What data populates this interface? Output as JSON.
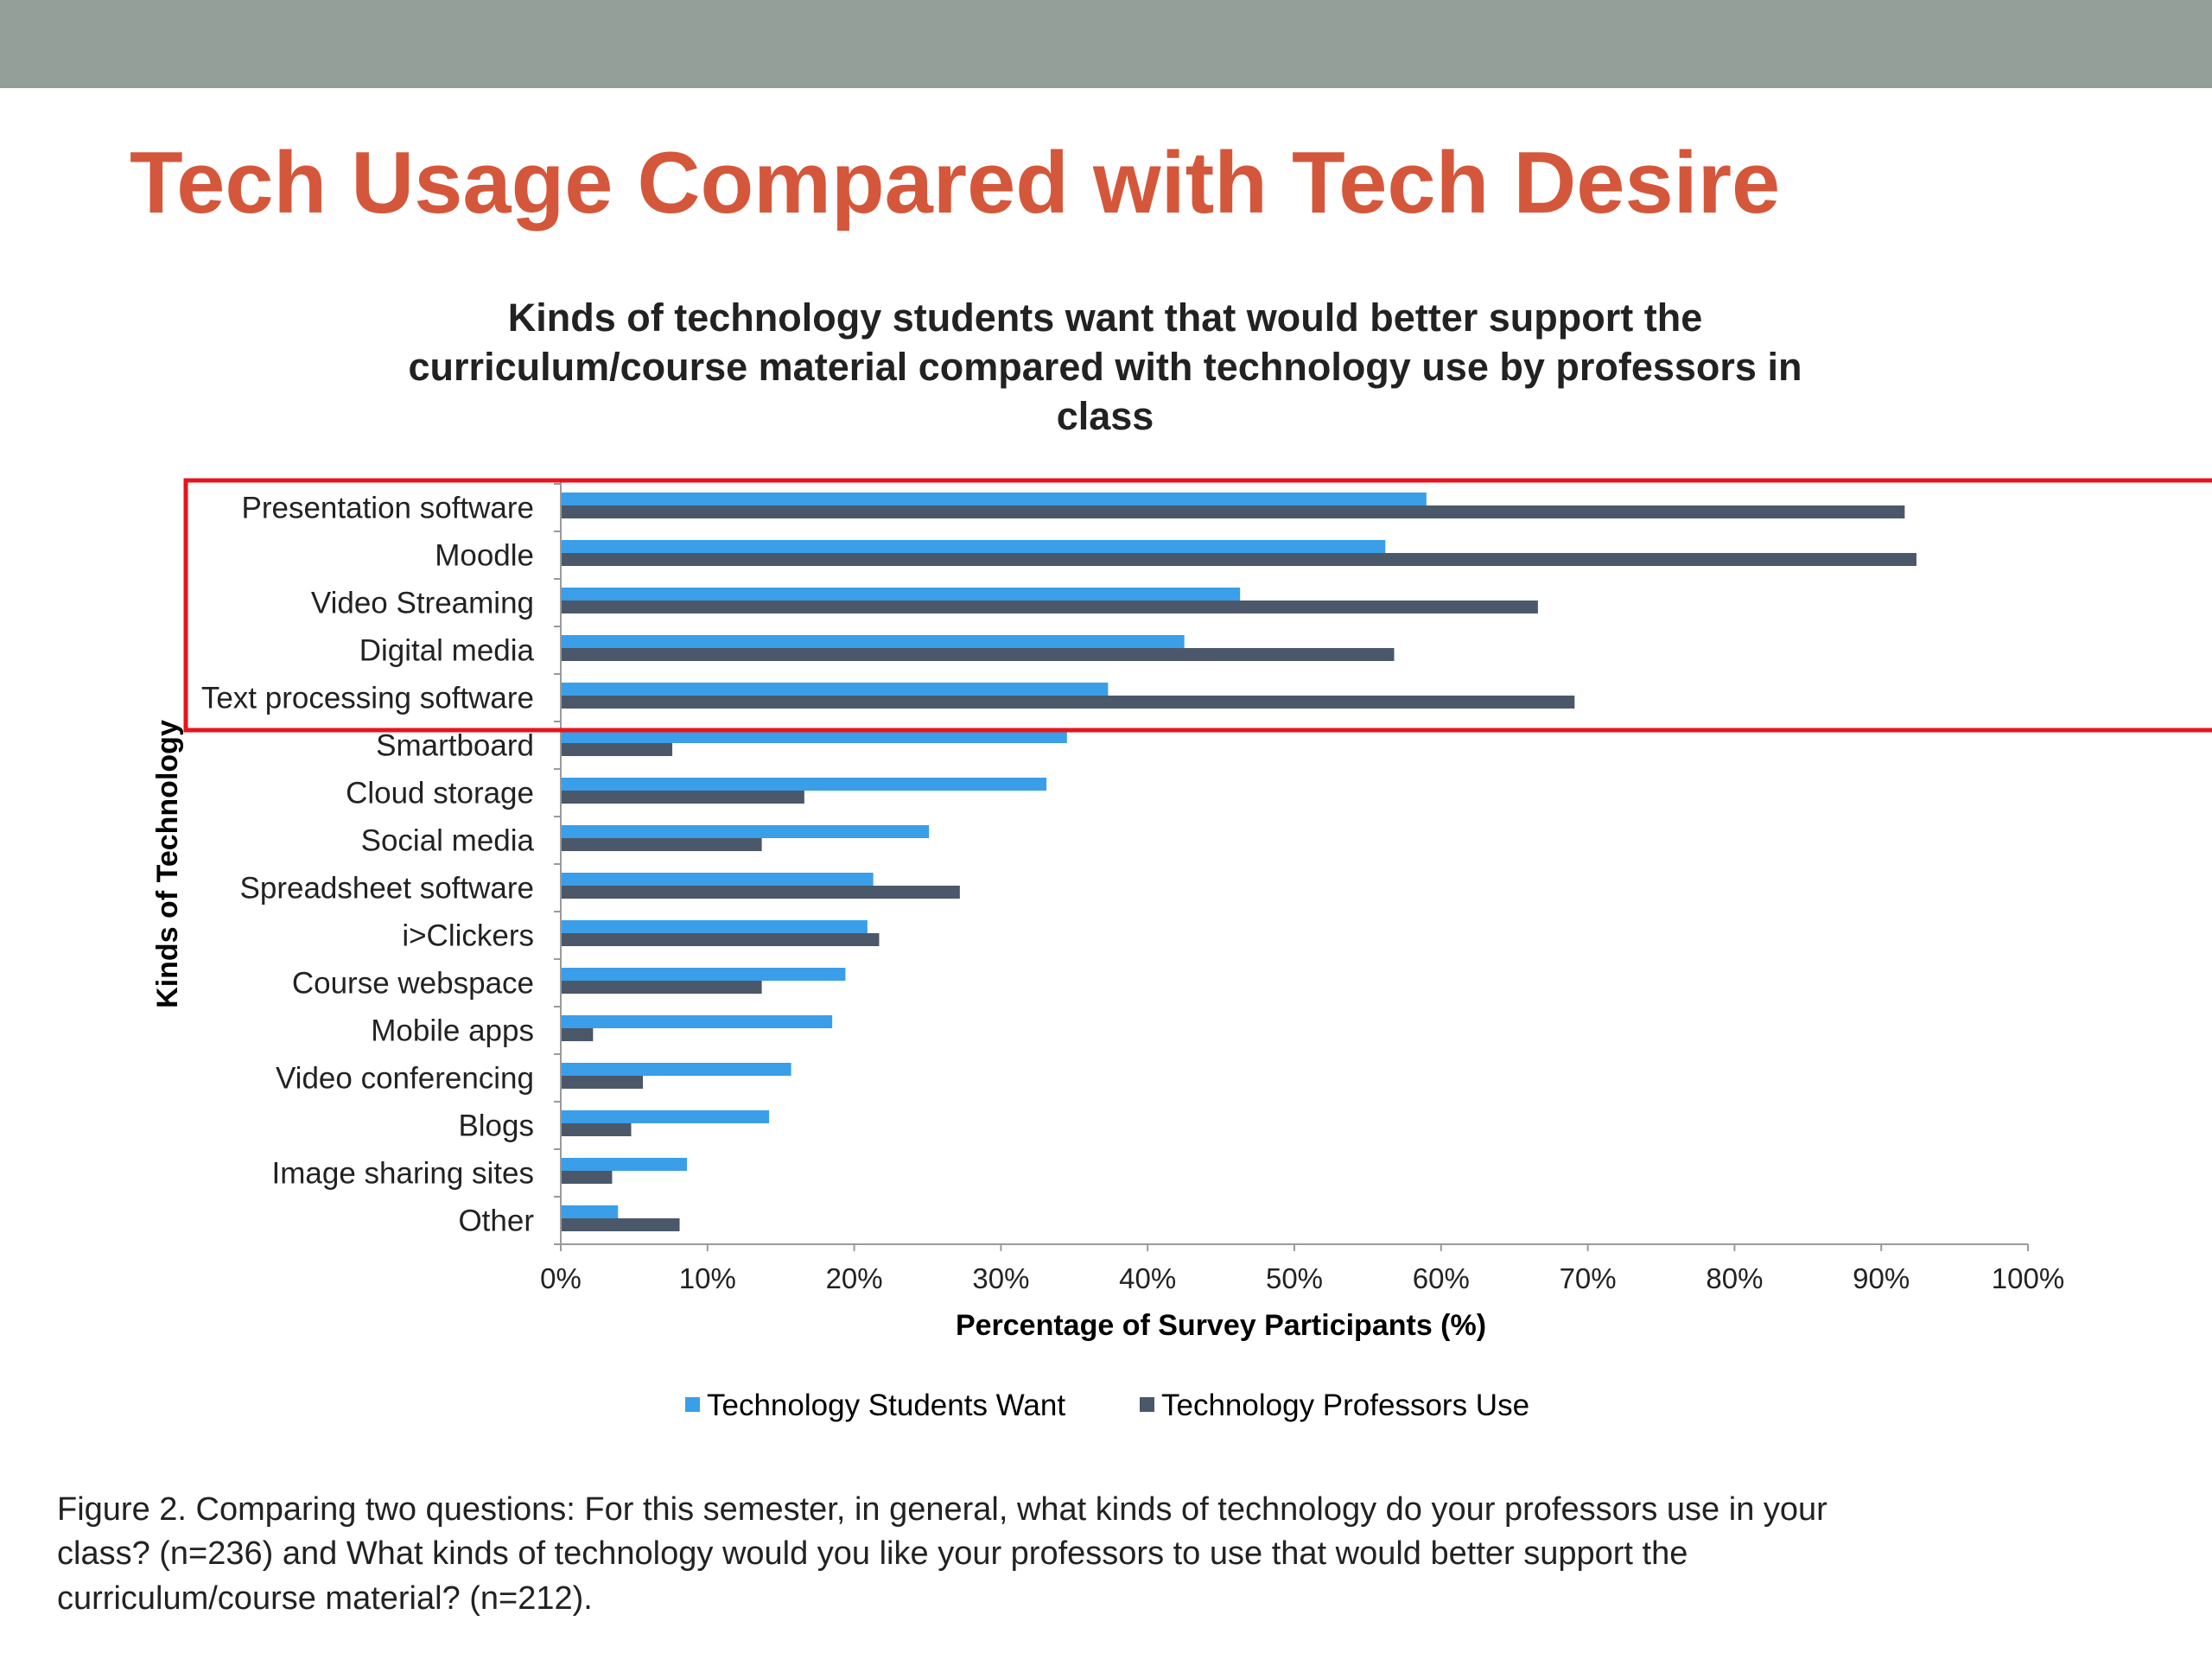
{
  "slide": {
    "title": "Tech Usage Compared with Tech Desire",
    "title_color": "#d4573b",
    "header_bar_color": "#939f98",
    "highlight_box_color": "#e8141b"
  },
  "caption": {
    "lines": [
      "Figure 2. Comparing two questions: For this semester, in general, what kinds of technology do your professors use in your",
      "class? (n=236) and What kinds of technology would you like your professors to use that would better support the",
      "curriculum/course material? (n=212)."
    ]
  },
  "chart_data": {
    "type": "bar",
    "orientation": "horizontal",
    "title_lines": [
      "Kinds of technology students want that would better support the",
      "curriculum/course material compared with technology use by professors in",
      "class"
    ],
    "xlabel": "Percentage of Survey Participants (%)",
    "ylabel": "Kinds of Technology",
    "xlim": [
      0,
      100
    ],
    "x_ticks": [
      "0%",
      "10%",
      "20%",
      "30%",
      "40%",
      "50%",
      "60%",
      "70%",
      "80%",
      "90%",
      "100%"
    ],
    "grid": false,
    "legend_position": "bottom",
    "categories": [
      "Presentation software",
      "Moodle",
      "Video Streaming",
      "Digital media",
      "Text processing software",
      "Smartboard",
      "Cloud storage",
      "Social media",
      "Spreadsheet software",
      "i>Clickers",
      "Course webspace",
      "Mobile apps",
      "Video conferencing",
      "Blogs",
      "Image sharing sites",
      "Other"
    ],
    "series": [
      {
        "name": "Technology Students Want",
        "color": "#3a9ee8",
        "values": [
          59,
          56.2,
          46.3,
          42.5,
          37.3,
          34.5,
          33.1,
          25.1,
          21.3,
          20.9,
          19.4,
          18.5,
          15.7,
          14.2,
          8.6,
          3.9
        ]
      },
      {
        "name": "Technology Professors Use",
        "color": "#4a5869",
        "values": [
          91.6,
          92.4,
          66.6,
          56.8,
          69.1,
          7.6,
          16.6,
          13.7,
          27.2,
          21.7,
          13.7,
          2.2,
          5.6,
          4.8,
          3.5,
          8.1
        ]
      }
    ],
    "highlighted_categories": [
      "Presentation software",
      "Moodle",
      "Video Streaming",
      "Digital media",
      "Text processing software"
    ]
  }
}
